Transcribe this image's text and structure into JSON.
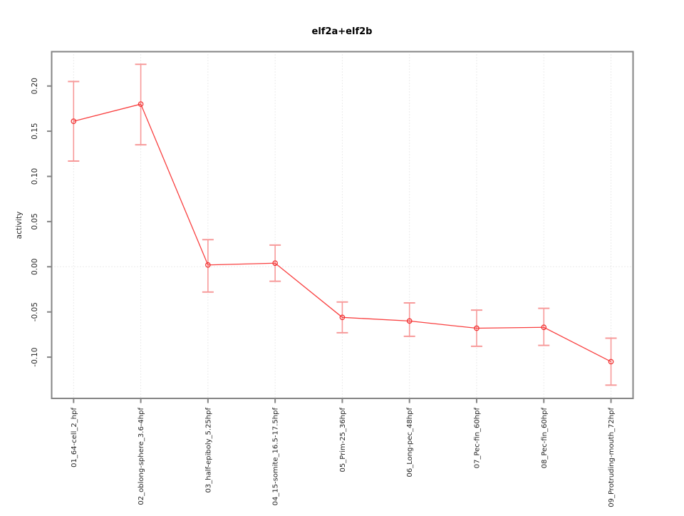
{
  "figure": {
    "title": "elf2a+elf2b",
    "background": "#ffffff"
  },
  "chart_data": {
    "type": "line",
    "title": "elf2a+elf2b",
    "xlabel": "",
    "ylabel": "activity",
    "categories": [
      "01_64-cell_2_hpf",
      "02_oblong-sphere_3.6-4hpf",
      "03_half-epiboly_5.25hpf",
      "04_15-somite_16.5-17.5hpf",
      "05_Prim-25_36hpf",
      "06_Long-pec_48hpf",
      "07_Pec-fin_60hpf",
      "08_Pec-fin_60hpf",
      "09_Protruding-mouth_72hpf"
    ],
    "series": [
      {
        "name": "activity",
        "values": [
          0.161,
          0.18,
          0.002,
          0.004,
          -0.056,
          -0.06,
          -0.068,
          -0.067,
          -0.105
        ],
        "error_low": [
          0.117,
          0.135,
          -0.028,
          -0.016,
          -0.073,
          -0.077,
          -0.088,
          -0.087,
          -0.131
        ],
        "error_high": [
          0.205,
          0.224,
          0.03,
          0.024,
          -0.039,
          -0.04,
          -0.048,
          -0.046,
          -0.079
        ]
      }
    ],
    "ytick_values": [
      0.2,
      0.15,
      0.1,
      0.05,
      0.0,
      -0.05,
      -0.1
    ],
    "ytick_labels": [
      "0.20",
      "0.15",
      "0.10",
      "0.05",
      "0.00",
      "-0.05",
      "-0.10"
    ],
    "ylim": [
      -0.146,
      0.238
    ],
    "grid": "vertical dotted line at each category; horizontal dotted line at y=0",
    "legend": "none",
    "marker": "open-circle",
    "colors": {
      "line": "#f94040",
      "marker": "#f03636",
      "error_bar": "#f79a9a",
      "axis_box": "#848484",
      "grid": "#d6d6d6",
      "tick_text": "#262626",
      "title_text": "#000000"
    }
  }
}
